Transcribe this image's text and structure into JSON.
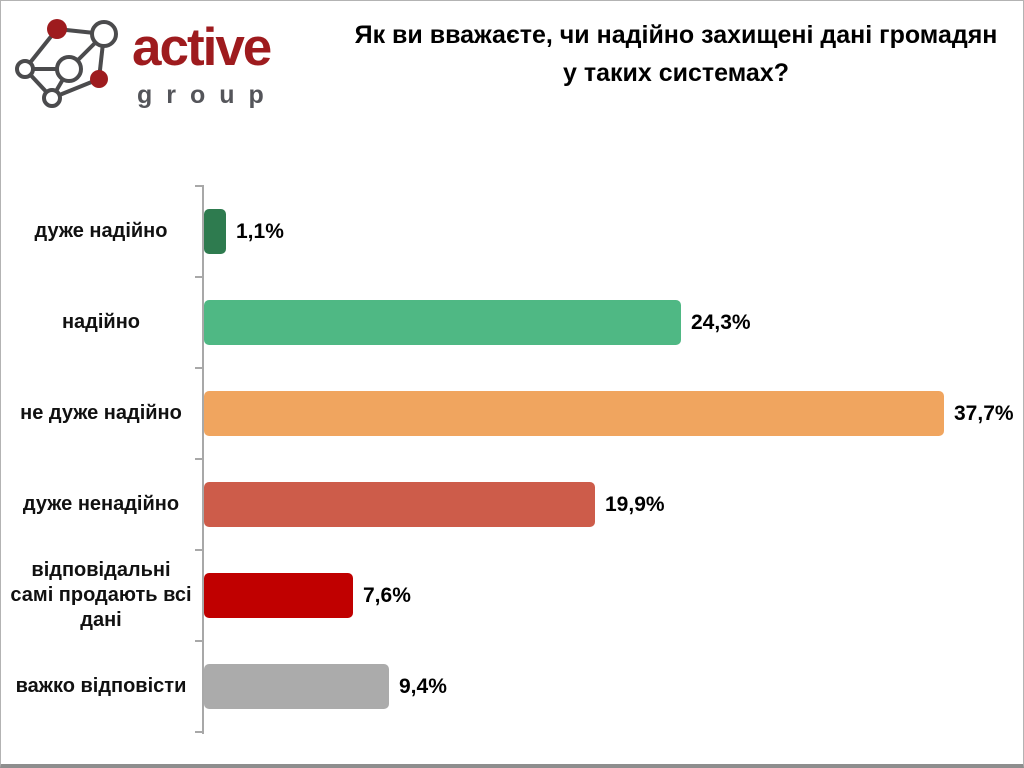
{
  "logo": {
    "primary": "active",
    "secondary": "group",
    "primary_color": "#9e1b1e",
    "secondary_color": "#54555a",
    "node_line_color": "#4b4b4d"
  },
  "title": {
    "line1": "Як ви вважаєте, чи надійно захищені дані громадян",
    "line2": "у таких системах?"
  },
  "chart_data": {
    "type": "bar",
    "orientation": "horizontal",
    "title": "Як ви вважаєте, чи надійно захищені дані громадян у таких системах?",
    "categories": [
      "дуже надійно",
      "надійно",
      "не дуже надійно",
      "дуже ненадійно",
      "відповідальні самі продають всі дані",
      "важко відповісти"
    ],
    "values": [
      1.1,
      24.3,
      37.7,
      19.9,
      7.6,
      9.4
    ],
    "value_labels": [
      "1,1%",
      "24,3%",
      "37,7%",
      "19,9%",
      "7,6%",
      "9,4%"
    ],
    "bar_colors": [
      "#2e7b4f",
      "#4fb884",
      "#f0a55f",
      "#cd5c4a",
      "#c00000",
      "#ababab"
    ],
    "xlim": [
      0,
      40
    ],
    "grid": false,
    "legend": "none",
    "axis_color": "#a8a8a8",
    "category_label_color": "#111111",
    "value_label_color": "#000000"
  }
}
